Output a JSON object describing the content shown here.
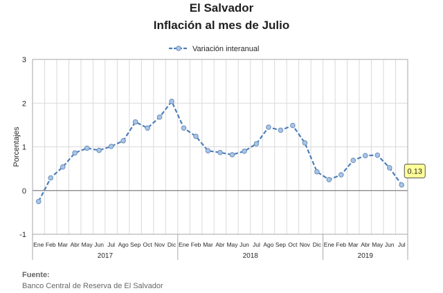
{
  "title": "El Salvador",
  "subtitle": "Inflación al mes de Julio",
  "source_label": "Fuente:",
  "source_text": "Banco Central de Reserva de El Salvador",
  "colors": {
    "series": "#4a7ebb",
    "marker_fill": "#a9c4e8",
    "grid": "#d9d9d9",
    "callout_bg": "#ffff99"
  },
  "chart_data": {
    "type": "line",
    "title": "Inflación al mes de Julio",
    "xlabel": "",
    "ylabel": "Porcentajes",
    "ylim": [
      -1,
      3
    ],
    "yticks": [
      "-1",
      "0",
      "1",
      "2",
      "3"
    ],
    "grid": true,
    "legend_placement": "top-center",
    "callout": "0.13",
    "x": [
      "Ene",
      "Feb",
      "Mar",
      "Abr",
      "May",
      "Jun",
      "Jul",
      "Ago",
      "Sep",
      "Oct",
      "Nov",
      "Dic",
      "Ene",
      "Feb",
      "Mar",
      "Abr",
      "May",
      "Jun",
      "Jul",
      "Ago",
      "Sep",
      "Oct",
      "Nov",
      "Dic",
      "Ene",
      "Feb",
      "Mar",
      "Abr",
      "May",
      "Jun",
      "Jul"
    ],
    "years": [
      {
        "label": "2017",
        "months": 12
      },
      {
        "label": "2018",
        "months": 12
      },
      {
        "label": "2019",
        "months": 7
      }
    ],
    "series": [
      {
        "name": "Variación interanual",
        "values": [
          -0.25,
          0.29,
          0.54,
          0.86,
          0.97,
          0.92,
          1.01,
          1.14,
          1.57,
          1.43,
          1.68,
          2.04,
          1.43,
          1.24,
          0.91,
          0.87,
          0.82,
          0.9,
          1.07,
          1.45,
          1.38,
          1.49,
          1.09,
          0.43,
          0.25,
          0.36,
          0.69,
          0.8,
          0.81,
          0.52,
          0.13
        ]
      }
    ]
  }
}
